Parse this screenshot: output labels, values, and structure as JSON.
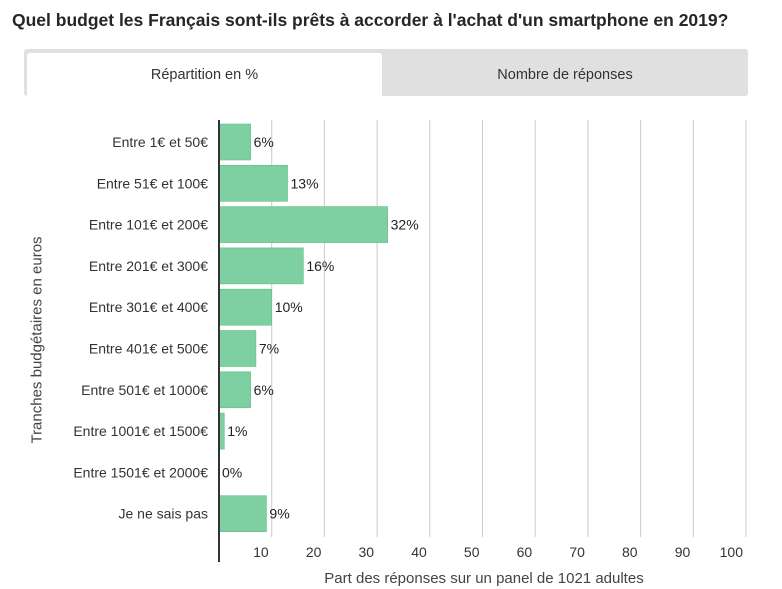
{
  "title": "Quel budget les Français sont-ils prêts à accorder à l'achat d'un smartphone en 2019?",
  "tabs": {
    "active_label": "Répartition en %",
    "inactive_label": "Nombre de réponses"
  },
  "colors": {
    "bar": "#7ecfa2",
    "bar_stroke": "#5fbd88",
    "grid": "#cccccc",
    "axis": "#333333"
  },
  "chart_data": {
    "type": "bar",
    "orientation": "horizontal",
    "categories": [
      "Entre 1€ et 50€",
      "Entre 51€ et 100€",
      "Entre 101€ et 200€",
      "Entre 201€ et 300€",
      "Entre 301€ et 400€",
      "Entre 401€ et 500€",
      "Entre 501€ et 1000€",
      "Entre 1001€ et 1500€",
      "Entre 1501€ et 2000€",
      "Je ne sais pas"
    ],
    "values": [
      6,
      13,
      32,
      16,
      10,
      7,
      6,
      1,
      0,
      9
    ],
    "value_labels": [
      "6%",
      "13%",
      "32%",
      "16%",
      "10%",
      "7%",
      "6%",
      "1%",
      "0%",
      "9%"
    ],
    "xticks": [
      "10",
      "20",
      "30",
      "40",
      "50",
      "60",
      "70",
      "80",
      "90",
      "100"
    ],
    "xlim": [
      0,
      100
    ],
    "xlabel": "Part des réponses sur un panel de 1021 adultes",
    "ylabel": "Tranches budgétaires en euros",
    "grid": "vertical"
  }
}
